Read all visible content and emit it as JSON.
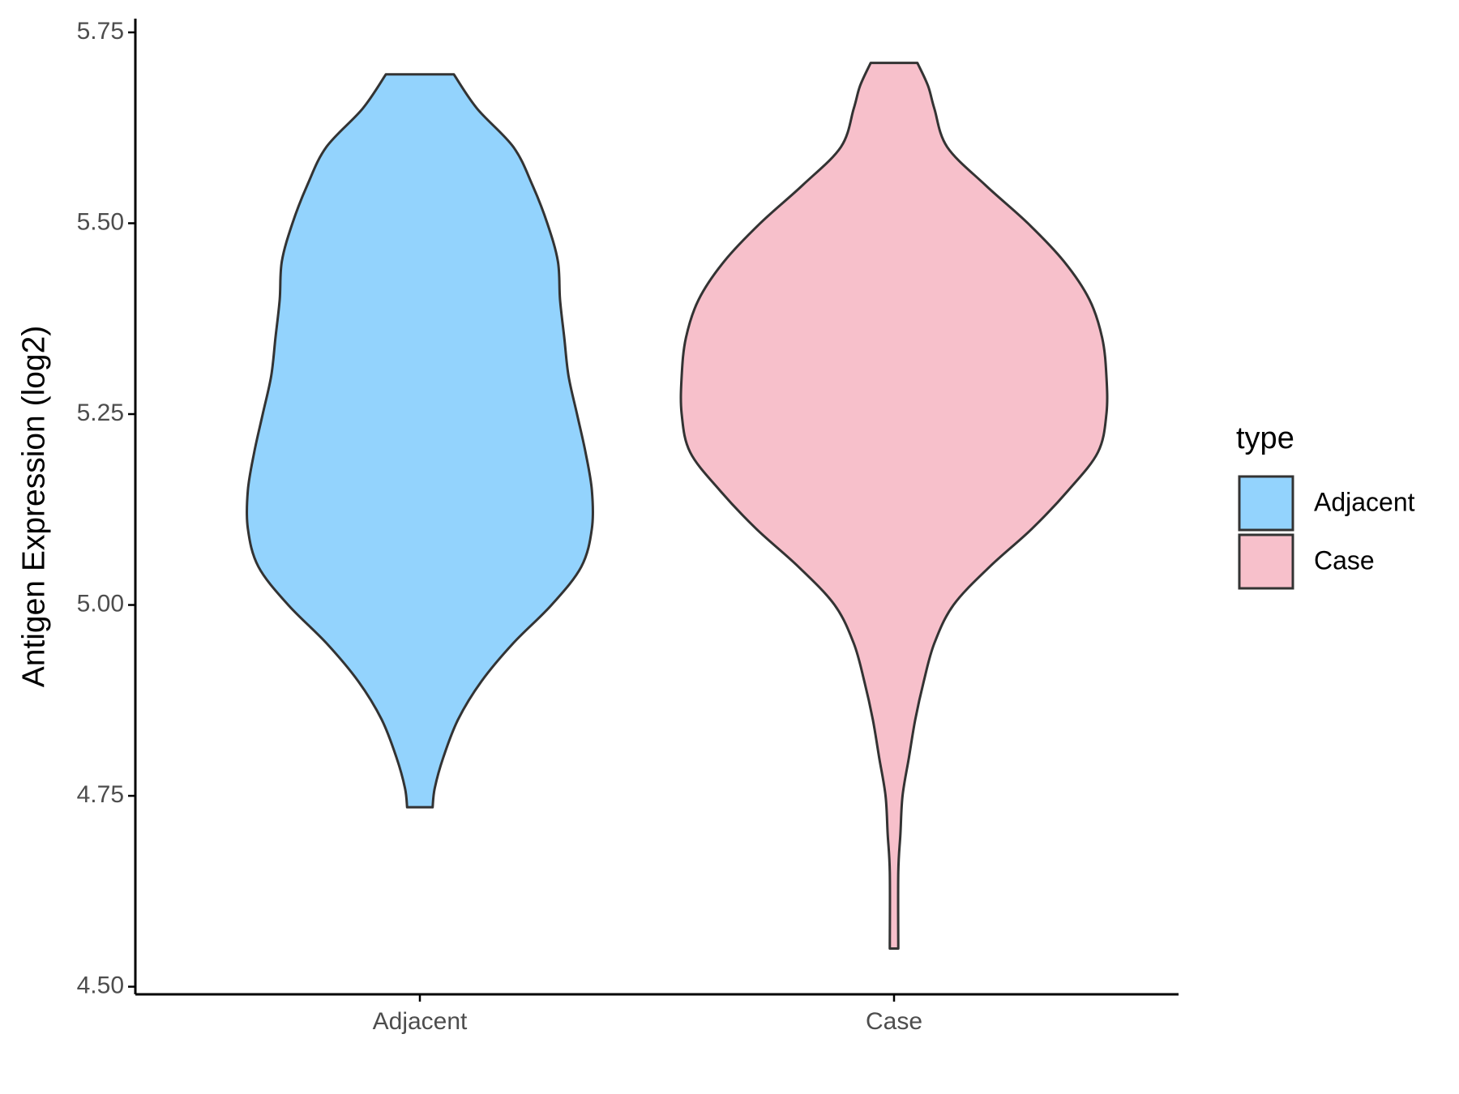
{
  "chart_data": {
    "type": "violin",
    "y_label": "Antigen Expression (log2)",
    "categories": [
      "Adjacent",
      "Case"
    ],
    "ylim": [
      4.49,
      5.768
    ],
    "yticks": [
      {
        "value": 4.5,
        "label": "4.50"
      },
      {
        "value": 4.75,
        "label": "4.75"
      },
      {
        "value": 5.0,
        "label": "5.00"
      },
      {
        "value": 5.25,
        "label": "5.25"
      },
      {
        "value": 5.5,
        "label": "5.50"
      },
      {
        "value": 5.75,
        "label": "5.75"
      }
    ],
    "legend_title": "type",
    "legend_position": "right",
    "series": [
      {
        "name": "Adjacent",
        "color": "#93d3fd",
        "y": [
          5.695,
          5.65,
          5.6,
          5.55,
          5.5,
          5.45,
          5.4,
          5.35,
          5.3,
          5.25,
          5.2,
          5.15,
          5.1,
          5.05,
          5.0,
          4.95,
          4.9,
          4.85,
          4.8,
          4.76,
          4.735
        ],
        "density": [
          0.16,
          0.27,
          0.44,
          0.53,
          0.6,
          0.65,
          0.66,
          0.68,
          0.7,
          0.74,
          0.78,
          0.81,
          0.81,
          0.76,
          0.62,
          0.44,
          0.29,
          0.18,
          0.11,
          0.07,
          0.06
        ]
      },
      {
        "name": "Case",
        "color": "#f7c0cb",
        "y": [
          5.71,
          5.68,
          5.65,
          5.6,
          5.55,
          5.5,
          5.45,
          5.4,
          5.35,
          5.3,
          5.25,
          5.2,
          5.15,
          5.1,
          5.05,
          5.0,
          4.95,
          4.9,
          4.85,
          4.8,
          4.75,
          4.7,
          4.65,
          4.55
        ],
        "density": [
          0.11,
          0.16,
          0.19,
          0.25,
          0.43,
          0.63,
          0.8,
          0.92,
          0.98,
          1.0,
          1.0,
          0.96,
          0.82,
          0.65,
          0.45,
          0.28,
          0.19,
          0.14,
          0.1,
          0.07,
          0.04,
          0.03,
          0.02,
          0.02
        ]
      }
    ]
  }
}
